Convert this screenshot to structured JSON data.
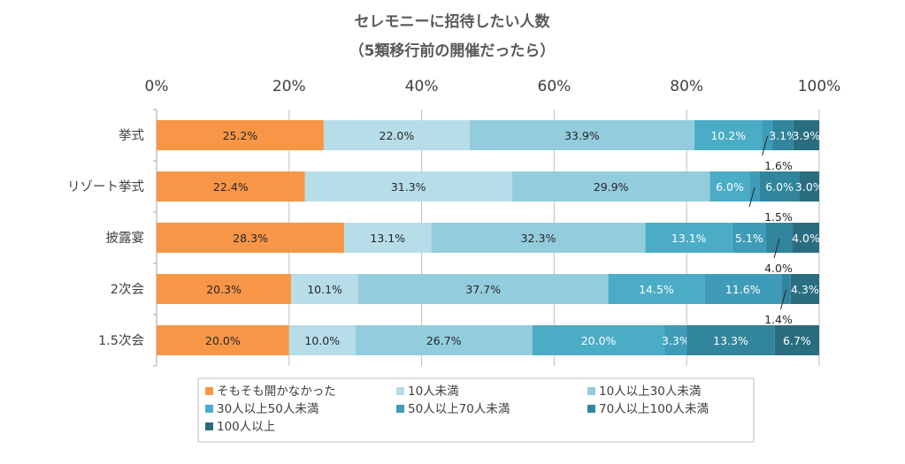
{
  "chart_data": {
    "type": "bar",
    "orientation": "horizontal",
    "stacked": "percent",
    "title": "セレモニーに招待したい人数",
    "subtitle": "（5類移行前の開催だったら）",
    "x_ticks": [
      "0%",
      "20%",
      "40%",
      "60%",
      "80%",
      "100%"
    ],
    "xlim": [
      0,
      100
    ],
    "grid": true,
    "legend_position": "bottom",
    "categories": [
      "挙式",
      "リゾート挙式",
      "披露宴",
      "2次会",
      "1.5次会"
    ],
    "series": [
      {
        "name": "そもそも開かなかった",
        "color": "#F79646",
        "values": [
          25.2,
          22.4,
          28.3,
          20.3,
          20.0
        ],
        "labels": [
          "25.2%",
          "22.4%",
          "28.3%",
          "20.3%",
          "20.0%"
        ]
      },
      {
        "name": "10人未満",
        "color": "#B7DEE8",
        "values": [
          22.0,
          31.3,
          13.1,
          10.1,
          10.0
        ],
        "labels": [
          "22.0%",
          "31.3%",
          "13.1%",
          "10.1%",
          "10.0%"
        ]
      },
      {
        "name": "10人以上30人未満",
        "color": "#93CDDD",
        "values": [
          33.9,
          29.9,
          32.3,
          37.7,
          26.7
        ],
        "labels": [
          "33.9%",
          "29.9%",
          "32.3%",
          "37.7%",
          "26.7%"
        ]
      },
      {
        "name": "30人以上50人未満",
        "color": "#4BACC6",
        "values": [
          10.2,
          6.0,
          13.1,
          14.5,
          20.0
        ],
        "labels": [
          "10.2%",
          "6.0%",
          "13.1%",
          "14.5%",
          "20.0%"
        ]
      },
      {
        "name": "50人以上70人未満",
        "color": "#3F9CB8",
        "values": [
          1.6,
          1.5,
          5.1,
          11.6,
          3.3
        ],
        "labels": [
          "",
          "",
          "5.1%",
          "11.6%",
          "3.3%"
        ]
      },
      {
        "name": "70人以上100人未満",
        "color": "#31859C",
        "values": [
          3.1,
          6.0,
          4.0,
          1.4,
          13.3
        ],
        "labels": [
          "3.1%",
          "6.0%",
          "",
          "",
          "13.3%"
        ]
      },
      {
        "name": "100人以上",
        "color": "#2A6D80",
        "values": [
          3.9,
          3.0,
          4.0,
          4.3,
          6.7
        ],
        "labels": [
          "3.9%",
          "3.0%",
          "4.0%",
          "4.3%",
          "6.7%"
        ]
      }
    ],
    "callouts": [
      {
        "category": "挙式",
        "label": "1.6%"
      },
      {
        "category": "リゾート挙式",
        "label": "1.5%"
      },
      {
        "category": "披露宴",
        "label": "4.0%"
      },
      {
        "category": "2次会",
        "label": "1.4%"
      }
    ]
  }
}
